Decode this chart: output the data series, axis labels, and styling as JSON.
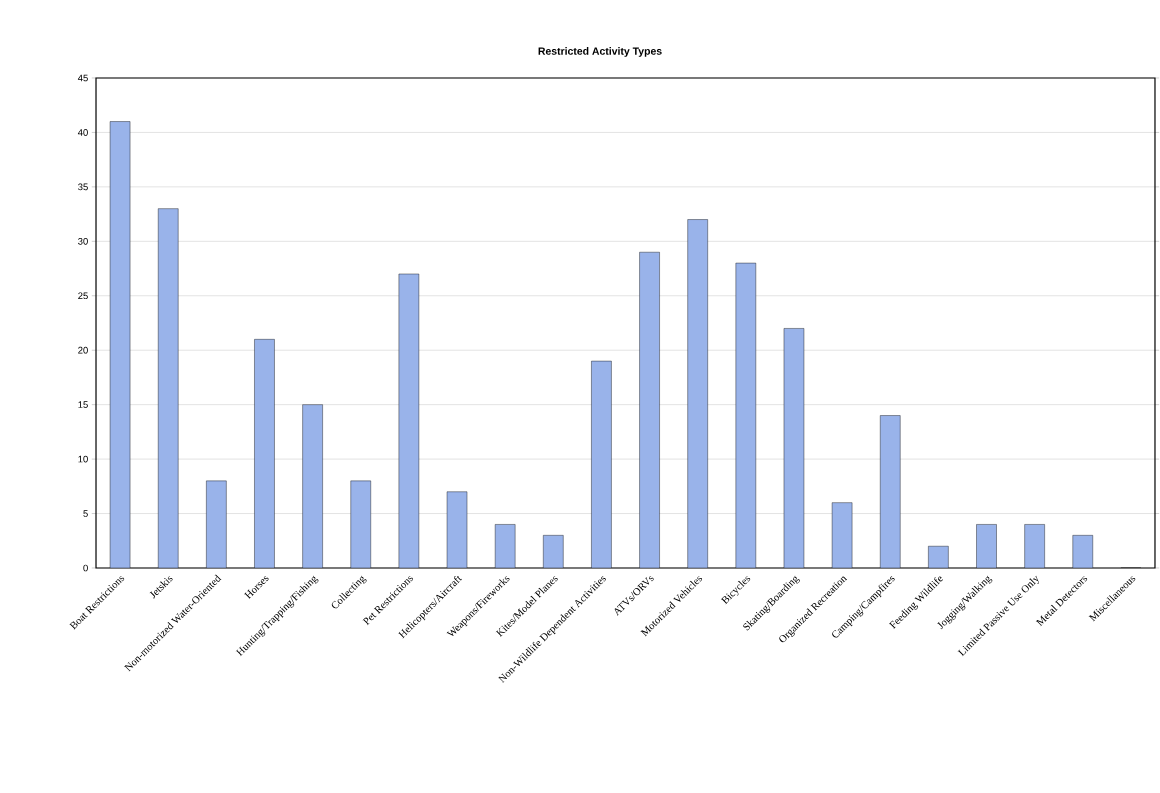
{
  "chart_data": {
    "type": "bar",
    "title": "Restricted Activity Types",
    "categories": [
      "Boat Restrictions",
      "Jetskis",
      "Non-motorized Water-Oriented",
      "Horses",
      "Hunting/Trapping/Fishing",
      "Collecting",
      "Pet Restrictions",
      "Helicopters/Aircraft",
      "Weapons/Fireworks",
      "Kites/Model Planes",
      "Non-Wildlife Dependent Activities",
      "ATVs/ORVs",
      "Motorized Vehicles",
      "Bicycles",
      "Skating/Boarding",
      "Organized Recreation",
      "Camping/Campfires",
      "Feeding Wildlife",
      "Jogging/Walking",
      "Limited Passive Use Only",
      "Metal Detectors",
      "Miscellaneous"
    ],
    "values": [
      41,
      33,
      8,
      21,
      15,
      8,
      27,
      7,
      4,
      3,
      19,
      29,
      32,
      28,
      22,
      6,
      14,
      2,
      4,
      4,
      3,
      0
    ],
    "color": "#99b3ea",
    "ylim": [
      0,
      45
    ],
    "yticks": [
      0,
      5,
      10,
      15,
      20,
      25,
      30,
      35,
      40,
      45
    ],
    "grid": "y"
  }
}
